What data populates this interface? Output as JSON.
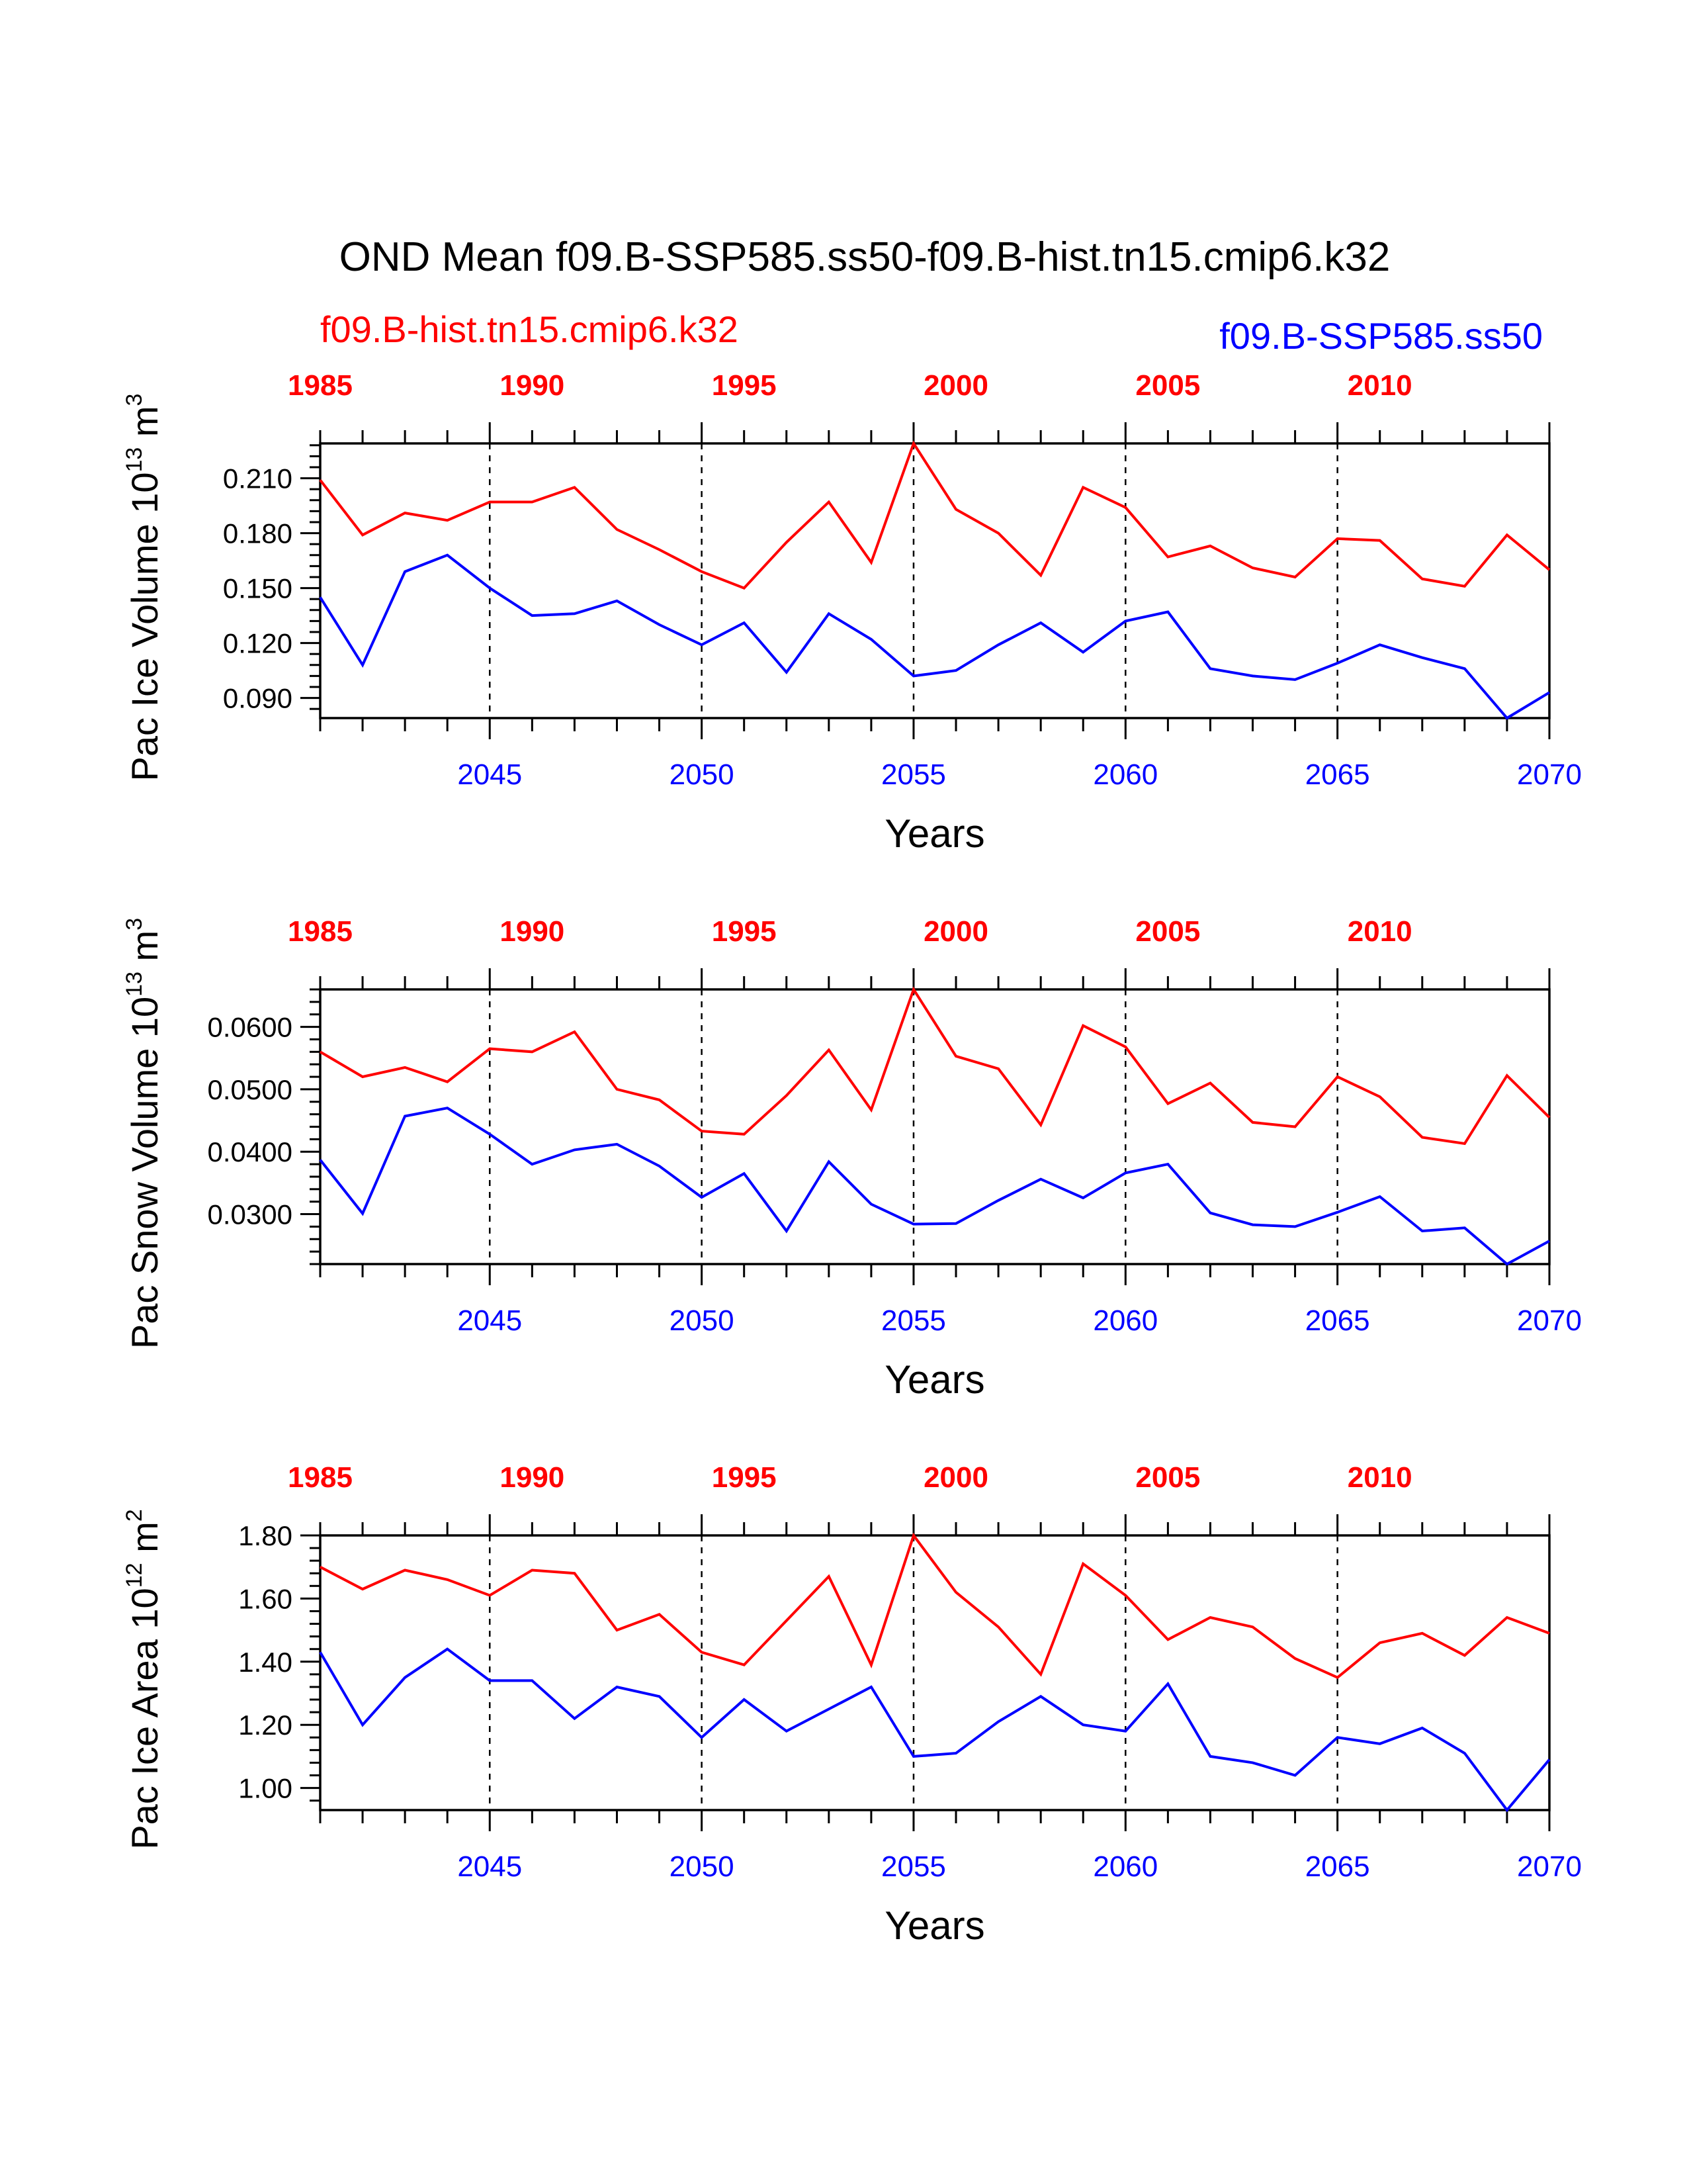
{
  "title": "OND Mean f09.B-SSP585.ss50-f09.B-hist.tn15.cmip6.k32",
  "legend": {
    "hist_label": "f09.B-hist.tn15.cmip6.k32",
    "ssp_label": "f09.B-SSP585.ss50"
  },
  "colors": {
    "hist": "#ff0000",
    "ssp": "#0000ff",
    "axis": "#000000"
  },
  "chart_data": [
    {
      "type": "line",
      "ylabel": "Pac Ice Volume 10",
      "ylabel_sup": "13",
      "ylabel_unit": " m",
      "ylabel_unit_sup": "3",
      "xlabel": "Years",
      "ylim": [
        0.079,
        0.229
      ],
      "yticks": [
        0.09,
        0.12,
        0.15,
        0.18,
        0.21
      ],
      "ytick_labels": [
        "0.090",
        "0.120",
        "0.150",
        "0.180",
        "0.210"
      ],
      "grid": false,
      "x_bottom": {
        "range": [
          2041,
          2070
        ],
        "tick_values": [
          2045,
          2050,
          2055,
          2060,
          2065,
          2070
        ],
        "tick_labels": [
          "2045",
          "2050",
          "2055",
          "2060",
          "2065",
          "2070"
        ]
      },
      "x_top": {
        "range": [
          1985,
          2014
        ],
        "tick_values": [
          1985,
          1990,
          1995,
          2000,
          2005,
          2010
        ],
        "tick_labels": [
          "1985",
          "1990",
          "1995",
          "2000",
          "2005",
          "2010"
        ]
      },
      "dashed_x": [
        2045,
        2050,
        2055,
        2060,
        2065
      ],
      "series": [
        {
          "name": "f09.B-hist.tn15.cmip6.k32",
          "color": "red",
          "axis": "top",
          "x": [
            1985,
            1986,
            1987,
            1988,
            1989,
            1990,
            1991,
            1992,
            1993,
            1994,
            1995,
            1996,
            1997,
            1998,
            1999,
            2000,
            2001,
            2002,
            2003,
            2004,
            2005,
            2006,
            2007,
            2008,
            2009,
            2010,
            2011,
            2012,
            2013,
            2014
          ],
          "values": [
            0.209,
            0.179,
            0.191,
            0.187,
            0.197,
            0.197,
            0.205,
            0.182,
            0.171,
            0.159,
            0.15,
            0.175,
            0.197,
            0.164,
            0.229,
            0.193,
            0.18,
            0.157,
            0.205,
            0.194,
            0.167,
            0.173,
            0.161,
            0.156,
            0.177,
            0.176,
            0.155,
            0.151,
            0.179,
            0.16
          ]
        },
        {
          "name": "f09.B-SSP585.ss50",
          "color": "blue",
          "axis": "bottom",
          "x": [
            2041,
            2042,
            2043,
            2044,
            2045,
            2046,
            2047,
            2048,
            2049,
            2050,
            2051,
            2052,
            2053,
            2054,
            2055,
            2056,
            2057,
            2058,
            2059,
            2060,
            2061,
            2062,
            2063,
            2064,
            2065,
            2066,
            2067,
            2068,
            2069,
            2070
          ],
          "values": [
            0.145,
            0.108,
            0.159,
            0.168,
            0.15,
            0.135,
            0.136,
            0.143,
            0.13,
            0.119,
            0.131,
            0.104,
            0.136,
            0.122,
            0.102,
            0.105,
            0.119,
            0.131,
            0.115,
            0.132,
            0.137,
            0.106,
            0.102,
            0.1,
            0.109,
            0.119,
            0.112,
            0.106,
            0.079,
            0.093
          ]
        }
      ]
    },
    {
      "type": "line",
      "ylabel": "Pac Snow Volume 10",
      "ylabel_sup": "13",
      "ylabel_unit": " m",
      "ylabel_unit_sup": "3",
      "xlabel": "Years",
      "ylim": [
        0.022,
        0.066
      ],
      "yticks": [
        0.03,
        0.04,
        0.05,
        0.06
      ],
      "ytick_labels": [
        "0.0300",
        "0.0400",
        "0.0500",
        "0.0600"
      ],
      "grid": false,
      "x_bottom": {
        "range": [
          2041,
          2070
        ],
        "tick_values": [
          2045,
          2050,
          2055,
          2060,
          2065,
          2070
        ],
        "tick_labels": [
          "2045",
          "2050",
          "2055",
          "2060",
          "2065",
          "2070"
        ]
      },
      "x_top": {
        "range": [
          1985,
          2014
        ],
        "tick_values": [
          1985,
          1990,
          1995,
          2000,
          2005,
          2010
        ],
        "tick_labels": [
          "1985",
          "1990",
          "1995",
          "2000",
          "2005",
          "2010"
        ]
      },
      "dashed_x": [
        2045,
        2050,
        2055,
        2060,
        2065
      ],
      "series": [
        {
          "name": "f09.B-hist.tn15.cmip6.k32",
          "color": "red",
          "axis": "top",
          "x": [
            1985,
            1986,
            1987,
            1988,
            1989,
            1990,
            1991,
            1992,
            1993,
            1994,
            1995,
            1996,
            1997,
            1998,
            1999,
            2000,
            2001,
            2002,
            2003,
            2004,
            2005,
            2006,
            2007,
            2008,
            2009,
            2010,
            2011,
            2012,
            2013,
            2014
          ],
          "values": [
            0.056,
            0.052,
            0.0535,
            0.0512,
            0.0565,
            0.056,
            0.0592,
            0.05,
            0.0483,
            0.0433,
            0.0428,
            0.049,
            0.0563,
            0.0467,
            0.066,
            0.0553,
            0.0533,
            0.0443,
            0.0602,
            0.0568,
            0.0477,
            0.051,
            0.0447,
            0.044,
            0.052,
            0.0488,
            0.0423,
            0.0413,
            0.0522,
            0.0455
          ]
        },
        {
          "name": "f09.B-SSP585.ss50",
          "color": "blue",
          "axis": "bottom",
          "x": [
            2041,
            2042,
            2043,
            2044,
            2045,
            2046,
            2047,
            2048,
            2049,
            2050,
            2051,
            2052,
            2053,
            2054,
            2055,
            2056,
            2057,
            2058,
            2059,
            2060,
            2061,
            2062,
            2063,
            2064,
            2065,
            2066,
            2067,
            2068,
            2069,
            2070
          ],
          "values": [
            0.0387,
            0.0301,
            0.0457,
            0.047,
            0.0428,
            0.038,
            0.0403,
            0.0412,
            0.0377,
            0.0327,
            0.0365,
            0.0273,
            0.0384,
            0.0316,
            0.0284,
            0.0285,
            0.0322,
            0.0356,
            0.0326,
            0.0366,
            0.038,
            0.0302,
            0.0283,
            0.028,
            0.0303,
            0.0328,
            0.0273,
            0.0278,
            0.022,
            0.0257
          ]
        }
      ]
    },
    {
      "type": "line",
      "ylabel": "Pac Ice Area 10",
      "ylabel_sup": "12",
      "ylabel_unit": " m",
      "ylabel_unit_sup": "2",
      "xlabel": "Years",
      "ylim": [
        0.93,
        1.8
      ],
      "yticks": [
        1.0,
        1.2,
        1.4,
        1.6,
        1.8
      ],
      "ytick_labels": [
        "1.00",
        "1.20",
        "1.40",
        "1.60",
        "1.80"
      ],
      "grid": false,
      "x_bottom": {
        "range": [
          2041,
          2070
        ],
        "tick_values": [
          2045,
          2050,
          2055,
          2060,
          2065,
          2070
        ],
        "tick_labels": [
          "2045",
          "2050",
          "2055",
          "2060",
          "2065",
          "2070"
        ]
      },
      "x_top": {
        "range": [
          1985,
          2014
        ],
        "tick_values": [
          1985,
          1990,
          1995,
          2000,
          2005,
          2010
        ],
        "tick_labels": [
          "1985",
          "1990",
          "1995",
          "2000",
          "2005",
          "2010"
        ]
      },
      "dashed_x": [
        2045,
        2050,
        2055,
        2060,
        2065
      ],
      "series": [
        {
          "name": "f09.B-hist.tn15.cmip6.k32",
          "color": "red",
          "axis": "top",
          "x": [
            1985,
            1986,
            1987,
            1988,
            1989,
            1990,
            1991,
            1992,
            1993,
            1994,
            1995,
            1996,
            1997,
            1998,
            1999,
            2000,
            2001,
            2002,
            2003,
            2004,
            2005,
            2006,
            2007,
            2008,
            2009,
            2010,
            2011,
            2012,
            2013,
            2014
          ],
          "values": [
            1.7,
            1.63,
            1.69,
            1.66,
            1.61,
            1.69,
            1.68,
            1.5,
            1.55,
            1.43,
            1.39,
            1.53,
            1.67,
            1.39,
            1.8,
            1.62,
            1.51,
            1.36,
            1.71,
            1.61,
            1.47,
            1.54,
            1.51,
            1.41,
            1.35,
            1.46,
            1.49,
            1.42,
            1.54,
            1.49
          ]
        },
        {
          "name": "f09.B-SSP585.ss50",
          "color": "blue",
          "axis": "bottom",
          "x": [
            2041,
            2042,
            2043,
            2044,
            2045,
            2046,
            2047,
            2048,
            2049,
            2050,
            2051,
            2052,
            2053,
            2054,
            2055,
            2056,
            2057,
            2058,
            2059,
            2060,
            2061,
            2062,
            2063,
            2064,
            2065,
            2066,
            2067,
            2068,
            2069,
            2070
          ],
          "values": [
            1.43,
            1.2,
            1.35,
            1.44,
            1.34,
            1.34,
            1.22,
            1.32,
            1.29,
            1.16,
            1.28,
            1.18,
            1.25,
            1.32,
            1.1,
            1.11,
            1.21,
            1.29,
            1.2,
            1.18,
            1.33,
            1.1,
            1.08,
            1.04,
            1.16,
            1.14,
            1.19,
            1.11,
            0.93,
            1.09
          ]
        }
      ]
    }
  ]
}
